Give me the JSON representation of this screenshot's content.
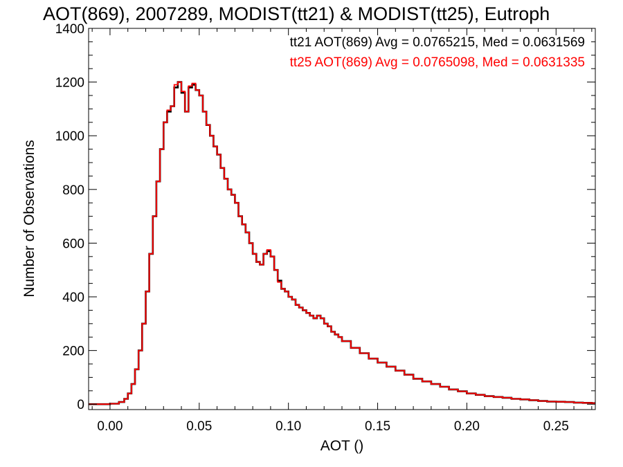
{
  "chart_data": {
    "type": "line",
    "title": "AOT(869), 2007289, MODIST(tt21) & MODIST(tt25), Eutroph",
    "xlabel": "AOT ()",
    "ylabel": "Number of Observations",
    "xlim": [
      -0.012,
      0.272
    ],
    "ylim": [
      -20,
      1400
    ],
    "x_ticks": [
      0.0,
      0.05,
      0.1,
      0.15,
      0.2,
      0.25
    ],
    "x_tick_labels": [
      "0.00",
      "0.05",
      "0.10",
      "0.15",
      "0.20",
      "0.25"
    ],
    "y_ticks": [
      0,
      200,
      400,
      600,
      800,
      1000,
      1200,
      1400
    ],
    "y_tick_labels": [
      "0",
      "200",
      "400",
      "600",
      "800",
      "1000",
      "1200",
      "1400"
    ],
    "grid": false,
    "style": "step histogram",
    "annotations": [
      {
        "text": "tt21 AOT(869) Avg = 0.0765215, Med = 0.0631569",
        "color": "#000000"
      },
      {
        "text": "tt25 AOT(869) Avg = 0.0765098, Med = 0.0631335",
        "color": "#ff0000"
      }
    ],
    "series": [
      {
        "name": "tt21",
        "color": "#000000",
        "x": [
          -0.01,
          0,
          0.005,
          0.008,
          0.01,
          0.012,
          0.014,
          0.016,
          0.018,
          0.02,
          0.022,
          0.024,
          0.026,
          0.028,
          0.03,
          0.032,
          0.034,
          0.036,
          0.038,
          0.04,
          0.042,
          0.044,
          0.046,
          0.048,
          0.05,
          0.052,
          0.054,
          0.056,
          0.058,
          0.06,
          0.062,
          0.064,
          0.066,
          0.068,
          0.07,
          0.072,
          0.074,
          0.076,
          0.078,
          0.08,
          0.082,
          0.084,
          0.086,
          0.088,
          0.09,
          0.092,
          0.094,
          0.096,
          0.098,
          0.1,
          0.102,
          0.104,
          0.106,
          0.108,
          0.11,
          0.112,
          0.114,
          0.116,
          0.118,
          0.12,
          0.122,
          0.124,
          0.126,
          0.128,
          0.13,
          0.135,
          0.14,
          0.145,
          0.15,
          0.155,
          0.16,
          0.165,
          0.17,
          0.175,
          0.18,
          0.185,
          0.19,
          0.195,
          0.2,
          0.205,
          0.21,
          0.215,
          0.22,
          0.225,
          0.23,
          0.235,
          0.24,
          0.245,
          0.25,
          0.255,
          0.26,
          0.265,
          0.27
        ],
        "values": [
          0,
          2,
          8,
          20,
          40,
          75,
          130,
          200,
          300,
          420,
          560,
          700,
          830,
          950,
          1050,
          1090,
          1110,
          1180,
          1200,
          1160,
          1090,
          1180,
          1190,
          1170,
          1150,
          1090,
          1040,
          1000,
          960,
          930,
          880,
          840,
          800,
          780,
          750,
          700,
          670,
          640,
          600,
          560,
          530,
          520,
          560,
          570,
          550,
          500,
          460,
          430,
          420,
          400,
          390,
          370,
          360,
          350,
          340,
          330,
          320,
          330,
          320,
          300,
          290,
          270,
          260,
          250,
          235,
          210,
          190,
          170,
          155,
          140,
          125,
          110,
          95,
          85,
          75,
          65,
          55,
          48,
          40,
          35,
          30,
          27,
          24,
          20,
          18,
          15,
          12,
          10,
          9,
          8,
          6,
          5,
          4
        ]
      },
      {
        "name": "tt25",
        "color": "#ff0000",
        "x": [
          -0.01,
          0,
          0.005,
          0.008,
          0.01,
          0.012,
          0.014,
          0.016,
          0.018,
          0.02,
          0.022,
          0.024,
          0.026,
          0.028,
          0.03,
          0.032,
          0.034,
          0.036,
          0.038,
          0.04,
          0.042,
          0.044,
          0.046,
          0.048,
          0.05,
          0.052,
          0.054,
          0.056,
          0.058,
          0.06,
          0.062,
          0.064,
          0.066,
          0.068,
          0.07,
          0.072,
          0.074,
          0.076,
          0.078,
          0.08,
          0.082,
          0.084,
          0.086,
          0.088,
          0.09,
          0.092,
          0.094,
          0.096,
          0.098,
          0.1,
          0.102,
          0.104,
          0.106,
          0.108,
          0.11,
          0.112,
          0.114,
          0.116,
          0.118,
          0.12,
          0.122,
          0.124,
          0.126,
          0.128,
          0.13,
          0.135,
          0.14,
          0.145,
          0.15,
          0.155,
          0.16,
          0.165,
          0.17,
          0.175,
          0.18,
          0.185,
          0.19,
          0.195,
          0.2,
          0.205,
          0.21,
          0.215,
          0.22,
          0.225,
          0.23,
          0.235,
          0.24,
          0.245,
          0.25,
          0.255,
          0.26,
          0.265,
          0.27
        ],
        "values": [
          0,
          2,
          8,
          20,
          40,
          75,
          130,
          200,
          300,
          420,
          560,
          700,
          830,
          950,
          1050,
          1095,
          1110,
          1190,
          1200,
          1165,
          1090,
          1185,
          1195,
          1170,
          1150,
          1090,
          1040,
          1000,
          960,
          930,
          880,
          840,
          800,
          780,
          750,
          700,
          670,
          640,
          600,
          560,
          530,
          520,
          560,
          575,
          550,
          500,
          455,
          430,
          420,
          400,
          390,
          370,
          360,
          350,
          340,
          330,
          320,
          330,
          320,
          300,
          290,
          270,
          260,
          250,
          235,
          210,
          190,
          170,
          155,
          140,
          125,
          110,
          95,
          85,
          75,
          65,
          55,
          48,
          40,
          35,
          30,
          27,
          24,
          20,
          18,
          15,
          12,
          10,
          9,
          8,
          6,
          5,
          4
        ]
      }
    ]
  }
}
